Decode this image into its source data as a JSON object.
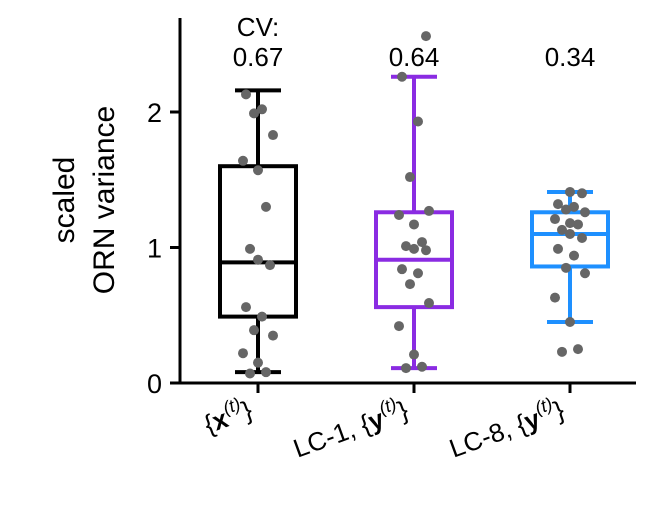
{
  "chart_data": {
    "type": "box",
    "ylabel_lines": [
      "scaled",
      "ORN variance"
    ],
    "ylim": [
      0,
      2.7
    ],
    "yticks": [
      0,
      1,
      2
    ],
    "ytick_labels": [
      "0",
      "1",
      "2"
    ],
    "cv_header": "CV:",
    "grid": false,
    "point_color": "#666666",
    "groups": [
      {
        "label_prefix": "{",
        "label_var": "x",
        "label_sup": "(t)",
        "label_suffix": "}",
        "color": "#000000",
        "cv": "0.67",
        "box": {
          "whisker_low": 0.08,
          "q1": 0.49,
          "median": 0.89,
          "q3": 1.6,
          "whisker_high": 2.16
        },
        "points": [
          0.07,
          0.08,
          0.15,
          0.22,
          0.35,
          0.39,
          0.49,
          0.56,
          0.87,
          0.91,
          0.99,
          1.3,
          1.57,
          1.64,
          1.83,
          1.99,
          2.02,
          2.13
        ]
      },
      {
        "label_prefix": "LC-1, {",
        "label_var": "y",
        "label_sup": "(t)",
        "label_suffix": "}",
        "color": "#8a2be2",
        "cv": "0.64",
        "box": {
          "whisker_low": 0.11,
          "q1": 0.56,
          "median": 0.91,
          "q3": 1.26,
          "whisker_high": 2.26
        },
        "points": [
          0.11,
          0.12,
          0.21,
          0.42,
          0.59,
          0.73,
          0.81,
          0.84,
          0.98,
          0.99,
          1.01,
          1.04,
          1.17,
          1.24,
          1.27,
          1.52,
          1.93,
          2.26,
          2.56
        ]
      },
      {
        "label_prefix": "LC-8, {",
        "label_var": "y",
        "label_sup": "(t)",
        "label_suffix": "}",
        "color": "#1e90ff",
        "cv": "0.34",
        "box": {
          "whisker_low": 0.45,
          "q1": 0.86,
          "median": 1.1,
          "q3": 1.26,
          "whisker_high": 1.41
        },
        "points": [
          0.23,
          0.25,
          0.45,
          0.63,
          0.81,
          0.85,
          0.94,
          0.99,
          1.07,
          1.1,
          1.13,
          1.17,
          1.18,
          1.21,
          1.26,
          1.28,
          1.3,
          1.32,
          1.4,
          1.41
        ]
      }
    ]
  }
}
